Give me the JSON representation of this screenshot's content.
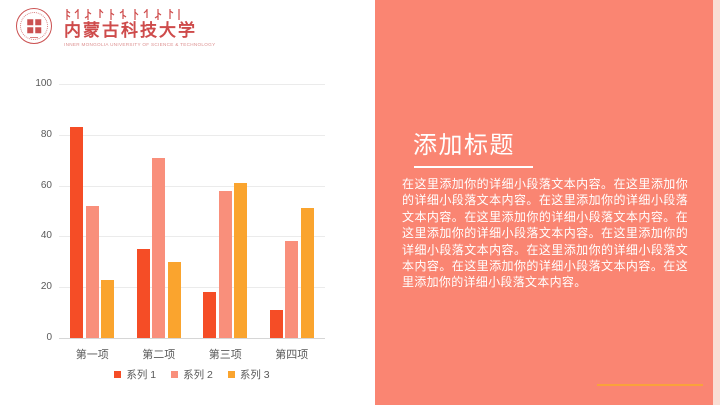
{
  "header": {
    "university_name_cn": "内蒙古科技大学",
    "university_name_en": "INNER MONGOLIA UNIVERSITY OF SCIENCE & TECHNOLOGY"
  },
  "chart_data": {
    "type": "bar",
    "categories": [
      "第一项",
      "第二项",
      "第三项",
      "第四项"
    ],
    "series": [
      {
        "name": "系列 1",
        "color": "#f54d26",
        "values": [
          83,
          35,
          18,
          11
        ]
      },
      {
        "name": "系列 2",
        "color": "#f98f7b",
        "values": [
          52,
          71,
          58,
          38
        ]
      },
      {
        "name": "系列 3",
        "color": "#faa42e",
        "values": [
          23,
          30,
          61,
          51
        ]
      }
    ],
    "title": "",
    "xlabel": "",
    "ylabel": "",
    "ylim": [
      0,
      100
    ],
    "ytick_interval": 20,
    "grid": true,
    "legend_position": "bottom"
  },
  "panel": {
    "title": "添加标题",
    "body": "在这里添加你的详细小段落文本内容。在这里添加你的详细小段落文本内容。在这里添加你的详细小段落文本内容。在这里添加你的详细小段落文本内容。在这里添加你的详细小段落文本内容。在这里添加你的详细小段落文本内容。在这里添加你的详细小段落文本内容。在这里添加你的详细小段落文本内容。在这里添加你的详细小段落文本内容。",
    "background": "#fa8572",
    "accent_line_color": "#f9a23b"
  },
  "colors": {
    "slide_background": "#ffffff",
    "axis_text": "#595959",
    "gridline": "#ebebeb",
    "logo_red": "#ce4b4b"
  }
}
